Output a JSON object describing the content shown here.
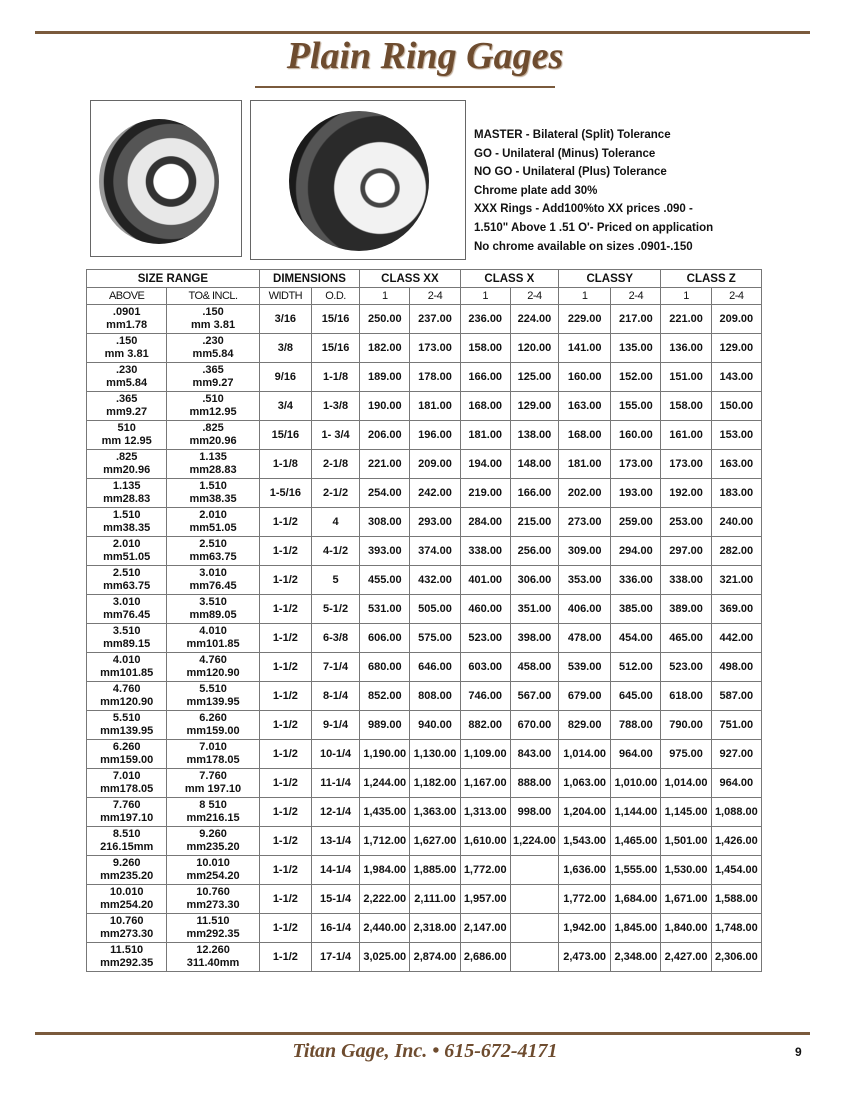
{
  "title": "Plain Ring Gages",
  "notes": [
    "MASTER - Bilateral (Split) Tolerance",
    "GO - Unilateral (Minus) Tolerance",
    "NO GO - Unilateral (Plus) Tolerance",
    "Chrome plate add 30%",
    "XXX Rings - Add100%to XX prices .090 -",
    "1.510\"  Above 1 .51 O'- Priced on application",
    "No chrome available on sizes .0901-.150"
  ],
  "table": {
    "group_headers": [
      "SIZE RANGE",
      "DIMENSIONS",
      "CLASS XX",
      "CLASS X",
      "CLASSY",
      "CLASS Z"
    ],
    "sub_headers": [
      "ABOVE",
      "TO& INCL.",
      "WIDTH",
      "O.D.",
      "1",
      "2-4",
      "1",
      "2-4",
      "1",
      "2-4",
      "1",
      "2-4"
    ],
    "rows": [
      [
        ".0901\nmm1.78",
        ".150\nmm 3.81",
        "3/16",
        "15/16",
        "250.00",
        "237.00",
        "236.00",
        "224.00",
        "229.00",
        "217.00",
        "221.00",
        "209.00"
      ],
      [
        ".150\nmm 3.81",
        ".230\nmm5.84",
        "3/8",
        "15/16",
        "182.00",
        "173.00",
        "158.00",
        "120.00",
        "141.00",
        "135.00",
        "136.00",
        "129.00"
      ],
      [
        ".230\nmm5.84",
        ".365\nmm9.27",
        "9/16",
        "1-1/8",
        "189.00",
        "178.00",
        "166.00",
        "125.00",
        "160.00",
        "152.00",
        "151.00",
        "143.00"
      ],
      [
        ".365\nmm9.27",
        ".510\nmm12.95",
        "3/4",
        "1-3/8",
        "190.00",
        "181.00",
        "168.00",
        "129.00",
        "163.00",
        "155.00",
        "158.00",
        "150.00"
      ],
      [
        "510\nmm 12.95",
        ".825\nmm20.96",
        "15/16",
        "1- 3/4",
        "206.00",
        "196.00",
        "181.00",
        "138.00",
        "168.00",
        "160.00",
        "161.00",
        "153.00"
      ],
      [
        ".825\nmm20.96",
        "1.135\nmm28.83",
        "1-1/8",
        "2-1/8",
        "221.00",
        "209.00",
        "194.00",
        "148.00",
        "181.00",
        "173.00",
        "173.00",
        "163.00"
      ],
      [
        "1.135\nmm28.83",
        "1.510\nmm38.35",
        "1-5/16",
        "2-1/2",
        "254.00",
        "242.00",
        "219.00",
        "166.00",
        "202.00",
        "193.00",
        "192.00",
        "183.00"
      ],
      [
        "1.510\nmm38.35",
        "2.010\nmm51.05",
        "1-1/2",
        "4",
        "308.00",
        "293.00",
        "284.00",
        "215.00",
        "273.00",
        "259.00",
        "253.00",
        "240.00"
      ],
      [
        "2.010\nmm51.05",
        "2.510\nmm63.75",
        "1-1/2",
        "4-1/2",
        "393.00",
        "374.00",
        "338.00",
        "256.00",
        "309.00",
        "294.00",
        "297.00",
        "282.00"
      ],
      [
        "2.510\nmm63.75",
        "3.010\nmm76.45",
        "1-1/2",
        "5",
        "455.00",
        "432.00",
        "401.00",
        "306.00",
        "353.00",
        "336.00",
        "338.00",
        "321.00"
      ],
      [
        "3.010\nmm76.45",
        "3.510\nmm89.05",
        "1-1/2",
        "5-1/2",
        "531.00",
        "505.00",
        "460.00",
        "351.00",
        "406.00",
        "385.00",
        "389.00",
        "369.00"
      ],
      [
        "3.510\nmm89.15",
        "4.010\nmm101.85",
        "1-1/2",
        "6-3/8",
        "606.00",
        "575.00",
        "523.00",
        "398.00",
        "478.00",
        "454.00",
        "465.00",
        "442.00"
      ],
      [
        "4.010\nmm101.85",
        "4.760\nmm120.90",
        "1-1/2",
        "7-1/4",
        "680.00",
        "646.00",
        "603.00",
        "458.00",
        "539.00",
        "512.00",
        "523.00",
        "498.00"
      ],
      [
        "4.760\nmm120.90",
        "5.510\nmm139.95",
        "1-1/2",
        "8-1/4",
        "852.00",
        "808.00",
        "746.00",
        "567.00",
        "679.00",
        "645.00",
        "618.00",
        "587.00"
      ],
      [
        "5.510\nmm139.95",
        "6.260\nmm159.00",
        "1-1/2",
        "9-1/4",
        "989.00",
        "940.00",
        "882.00",
        "670.00",
        "829.00",
        "788.00",
        "790.00",
        "751.00"
      ],
      [
        "6.260\nmm159.00",
        "7.010\nmm178.05",
        "1-1/2",
        "10-1/4",
        "1,190.00",
        "1,130.00",
        "1,109.00",
        "843.00",
        "1,014.00",
        "964.00",
        "975.00",
        "927.00"
      ],
      [
        "7.010\nmm178.05",
        "7.760\nmm 197.10",
        "1-1/2",
        "11-1/4",
        "1,244.00",
        "1,182.00",
        "1,167.00",
        "888.00",
        "1,063.00",
        "1,010.00",
        "1,014.00",
        "964.00"
      ],
      [
        "7.760\nmm197.10",
        "8 510\nmm216.15",
        "1-1/2",
        "12-1/4",
        "1,435.00",
        "1,363.00",
        "1,313.00",
        "998.00",
        "1,204.00",
        "1,144.00",
        "1,145.00",
        "1,088.00"
      ],
      [
        "8.510\n216.15mm",
        "9.260\nmm235.20",
        "1-1/2",
        "13-1/4",
        "1,712.00",
        "1,627.00",
        "1,610.00",
        "1,224.00",
        "1,543.00",
        "1,465.00",
        "1,501.00",
        "1,426.00"
      ],
      [
        "9.260\nmm235.20",
        "10.010\nmm254.20",
        "1-1/2",
        "14-1/4",
        "1,984.00",
        "1,885.00",
        "1,772.00",
        "",
        "1,636.00",
        "1,555.00",
        "1,530.00",
        "1,454.00"
      ],
      [
        "10.010\nmm254.20",
        "10.760\nmm273.30",
        "1-1/2",
        "15-1/4",
        "2,222.00",
        "2,111.00",
        "1,957.00",
        "",
        "1,772.00",
        "1,684.00",
        "1,671.00",
        "1,588.00"
      ],
      [
        "10.760\nmm273.30",
        "11.510\nmm292.35",
        "1-1/2",
        "16-1/4",
        "2,440.00",
        "2,318.00",
        "2,147.00",
        "",
        "1,942.00",
        "1,845.00",
        "1,840.00",
        "1,748.00"
      ],
      [
        "11.510\nmm292.35",
        "12.260\n311.40mm",
        "1-1/2",
        "17-1/4",
        "3,025.00",
        "2,874.00",
        "2,686.00",
        "",
        "2,473.00",
        "2,348.00",
        "2,427.00",
        "2,306.00"
      ]
    ]
  },
  "footer": "Titan Gage, Inc. • 615-672-4171",
  "page_number": "9",
  "colors": {
    "brand_brown": "#6e4c2f",
    "rule": "#7a5a3c"
  }
}
